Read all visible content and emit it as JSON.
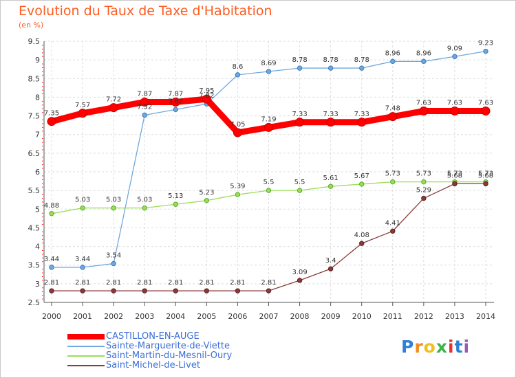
{
  "header": {
    "title": "Evolution du Taux de Taxe d'Habitation",
    "subtitle": "(en %)"
  },
  "chart_data": {
    "type": "line",
    "x": [
      "2000",
      "2001",
      "2002",
      "2003",
      "2004",
      "2005",
      "2006",
      "2007",
      "2008",
      "2009",
      "2010",
      "2011",
      "2012",
      "2013",
      "2014"
    ],
    "yticks": [
      "2.5",
      "3",
      "3.5",
      "4",
      "4.5",
      "5",
      "5.5",
      "6",
      "6.5",
      "7",
      "7.5",
      "8",
      "8.5",
      "9",
      "9.5"
    ],
    "ylim": [
      2.5,
      9.5
    ],
    "grid": true,
    "legend_position": "bottom-left",
    "series": [
      {
        "name": "CASTILLON-EN-AUGE",
        "color": "#ff0000",
        "values": [
          7.35,
          7.57,
          7.72,
          7.87,
          7.87,
          7.95,
          7.05,
          7.19,
          7.33,
          7.33,
          7.33,
          7.48,
          7.63,
          7.63,
          7.63
        ],
        "labels": [
          "7.35",
          "7.57",
          "7.72",
          "7.87",
          "7.87",
          "7.95",
          "7.05",
          "7.19",
          "7.33",
          "7.33",
          "7.33",
          "7.48",
          "7.63",
          "7.63",
          "7.63"
        ]
      },
      {
        "name": "Sainte-Marguerite-de-Viette",
        "color": "#6fa8dc",
        "values": [
          3.44,
          3.44,
          3.54,
          7.52,
          7.67,
          7.82,
          8.6,
          8.69,
          8.78,
          8.78,
          8.78,
          8.96,
          8.96,
          9.09,
          9.23
        ],
        "labels": [
          "3.44",
          "3.44",
          "3.54",
          "7.52",
          "7.67",
          "7.82",
          "8.6",
          "8.69",
          "8.78",
          "8.78",
          "8.78",
          "8.96",
          "8.96",
          "9.09",
          "9.23"
        ]
      },
      {
        "name": "Saint-Martin-du-Mesnil-Oury",
        "color": "#99dd55",
        "values": [
          4.88,
          5.03,
          5.03,
          5.03,
          5.13,
          5.23,
          5.39,
          5.5,
          5.5,
          5.61,
          5.67,
          5.73,
          5.73,
          5.73,
          5.73
        ],
        "labels": [
          "4.88",
          "5.03",
          "5.03",
          "5.03",
          "5.13",
          "5.23",
          "5.39",
          "5.5",
          "5.5",
          "5.61",
          "5.67",
          "5.73",
          "5.73",
          "5.73",
          "5.73"
        ]
      },
      {
        "name": "Saint-Michel-de-Livet",
        "color": "#8b3a3a",
        "values": [
          2.81,
          2.81,
          2.81,
          2.81,
          2.81,
          2.81,
          2.81,
          2.81,
          3.09,
          3.4,
          4.08,
          4.41,
          5.29,
          5.68,
          5.68
        ],
        "labels": [
          "2.81",
          "2.81",
          "2.81",
          "2.81",
          "2.81",
          "2.81",
          "2.81",
          "2.81",
          "3.09",
          "3.4",
          "4.08",
          "4.41",
          "5.29",
          "5.68",
          "5.68"
        ]
      }
    ]
  },
  "logo": {
    "letters": [
      "P",
      "r",
      "o",
      "x",
      "i",
      "t",
      "i"
    ],
    "colors": [
      "#2e7fd8",
      "#f28c1e",
      "#f2c01e",
      "#3cb54a",
      "#e83030",
      "#2e7fd8",
      "#9b59b6"
    ]
  }
}
